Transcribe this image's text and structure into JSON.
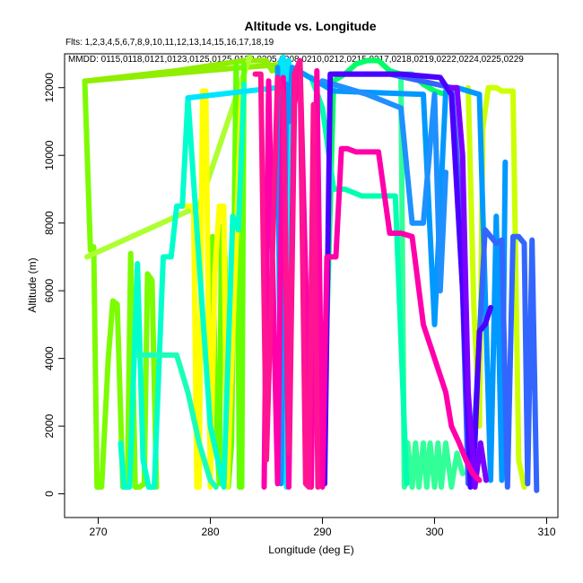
{
  "chart_data": {
    "type": "line",
    "title": "Altitude vs. Longitude",
    "subtitle": "Flts: 1,2,3,4,5,6,7,8,9,10,11,12,13,14,15,16,17,18,19",
    "note": "MMDD: 0115,0118,0121,0123,0125,0125,0130,0205,0208,0210,0212,0215,0217,0218,0219,0222,0224,0225,0229",
    "xlabel": "Longitude (deg E)",
    "ylabel": "Altitude (m)",
    "xlim": [
      267,
      311
    ],
    "ylim": [
      -700,
      13000
    ],
    "x_ticks": [
      270,
      280,
      290,
      300,
      310
    ],
    "y_ticks": [
      0,
      2000,
      4000,
      6000,
      8000,
      10000,
      12000
    ],
    "grid": false,
    "series": [
      {
        "color": "#7CFC00",
        "x": [
          268.8,
          269.3,
          269.6,
          269.9,
          270.3,
          270.9,
          271.3,
          271.7,
          272.2,
          272.6,
          272.9,
          273.3,
          273.7,
          274.1,
          274.4,
          274.8,
          275.2
        ],
        "y": [
          12200,
          7200,
          7300,
          200,
          200,
          4000,
          5700,
          5600,
          200,
          200,
          7100,
          200,
          200,
          300,
          6500,
          6300,
          200
        ]
      },
      {
        "color": "#90EE00",
        "x": [
          269.0,
          277.0,
          283.0,
          285.0,
          285.5,
          286.5,
          287.0,
          283.0,
          269.0
        ],
        "y": [
          12200,
          12500,
          12800,
          12800,
          12500,
          12600,
          12700,
          12600,
          12200
        ]
      },
      {
        "color": "#ADFF2F",
        "x": [
          269.0,
          279.0,
          283.5
        ],
        "y": [
          7000,
          8500,
          12900
        ]
      },
      {
        "color": "#66FF00",
        "x": [
          280.0,
          280.2,
          280.5,
          280.8,
          281.0,
          281.3,
          281.6,
          281.9,
          282.3,
          282.6,
          282.8,
          283.0
        ],
        "y": [
          1500,
          7600,
          2000,
          300,
          7900,
          7000,
          200,
          1500,
          12700,
          200,
          200,
          12700
        ]
      },
      {
        "color": "#FFFF00",
        "x": [
          277.5,
          278.0,
          278.5,
          278.8,
          279.0,
          279.3,
          279.6,
          280.0,
          280.4,
          280.8,
          281.2,
          281.5,
          282.8
        ],
        "y": [
          8500,
          8500,
          8500,
          200,
          200,
          11900,
          11900,
          200,
          6500,
          8500,
          8500,
          200,
          12000
        ]
      },
      {
        "color": "#00FFCC",
        "x": [
          272.0,
          272.3,
          272.8,
          273.5,
          274.0,
          274.5,
          275.0,
          275.8,
          276.5,
          277.0,
          277.5,
          278.0,
          280.0,
          281.2,
          282.0,
          282.5,
          283.0
        ],
        "y": [
          1500,
          200,
          200,
          6800,
          1000,
          200,
          200,
          7000,
          7000,
          8500,
          8500,
          11700,
          2000,
          200,
          8200,
          7800,
          12100
        ]
      },
      {
        "color": "#1AFFB8",
        "x": [
          273.5,
          274.5,
          276.0,
          277.0,
          278.0,
          279.0,
          280.0,
          280.5
        ],
        "y": [
          4100,
          4100,
          4100,
          4100,
          3000,
          1500,
          400,
          200
        ]
      },
      {
        "color": "#00E5FF",
        "x": [
          278.0,
          286.0,
          286.3,
          286.5,
          286.8,
          287.0
        ],
        "y": [
          11700,
          12000,
          12800,
          12900,
          200,
          12800
        ]
      },
      {
        "color": "#00FF66",
        "x": [
          290.0,
          291.0,
          292.0,
          293.0,
          294.0,
          295.0,
          296.0,
          297.0,
          298.0,
          299.0,
          300.0,
          301.0
        ],
        "y": [
          300,
          12200,
          12400,
          12700,
          12800,
          12800,
          12500,
          12400,
          12400,
          12100,
          11900,
          11800
        ]
      },
      {
        "color": "#33FF99",
        "x": [
          297.0,
          297.3,
          297.6,
          298.0,
          298.3,
          298.6,
          299.0,
          299.3,
          299.6,
          300.0,
          300.3,
          300.6,
          301.0,
          301.5,
          302.0,
          302.5
        ],
        "y": [
          12400,
          200,
          1500,
          200,
          1500,
          200,
          1500,
          200,
          1500,
          200,
          1500,
          200,
          1500,
          200,
          1200,
          600
        ]
      },
      {
        "color": "#00FFB0",
        "x": [
          289.0,
          290.0,
          291.0,
          292.0,
          293.5,
          295.0,
          296.5,
          297.5
        ],
        "y": [
          12300,
          11400,
          9000,
          9000,
          8800,
          8800,
          8800,
          300
        ]
      },
      {
        "color": "#CCFF00",
        "x": [
          303.0,
          303.5,
          304.0,
          304.3,
          304.8,
          305.5,
          306.0,
          307.0,
          307.5,
          308.0
        ],
        "y": [
          12000,
          5500,
          2000,
          10800,
          12000,
          12000,
          11900,
          11900,
          1000,
          200
        ]
      },
      {
        "color": "#0099FF",
        "x": [
          286.0,
          286.3,
          286.8,
          287.0,
          287.3,
          291.0,
          299.0,
          300.0,
          301.0,
          302.0,
          304.0,
          305.0,
          305.5,
          306.0,
          306.3
        ],
        "y": [
          12600,
          300,
          12100,
          11000,
          12600,
          11900,
          11800,
          5000,
          11900,
          12000,
          11800,
          400,
          8200,
          400,
          9800
        ]
      },
      {
        "color": "#1E90FF",
        "x": [
          290.0,
          294.0,
          297.0,
          298.0,
          299.0,
          300.0,
          300.5,
          301.0
        ],
        "y": [
          12200,
          11800,
          11400,
          8000,
          8000,
          11800,
          6000,
          9500
        ]
      },
      {
        "color": "#3366FF",
        "x": [
          291.0,
          296.0,
          301.5,
          302.0,
          302.5,
          303.0,
          303.5,
          304.5,
          305.5,
          306.0,
          306.5,
          307.0,
          307.5,
          308.0,
          308.3,
          308.7,
          309.1
        ],
        "y": [
          12400,
          12400,
          12000,
          10000,
          6000,
          300,
          1500,
          7800,
          7400,
          7500,
          200,
          7600,
          7600,
          7400,
          300,
          7500,
          100
        ]
      },
      {
        "color": "#4B00FF",
        "x": [
          290.2,
          290.7,
          292.0,
          297.0,
          300.5,
          301.5,
          302.5,
          303.2,
          303.6,
          304.0,
          304.5,
          305.0
        ],
        "y": [
          300,
          12400,
          12400,
          12400,
          12300,
          11800,
          6000,
          200,
          1500,
          4800,
          5000,
          5500
        ]
      },
      {
        "color": "#7A00FF",
        "x": [
          301.5,
          302.0,
          302.5,
          303.0,
          303.6,
          304.1,
          304.6
        ],
        "y": [
          12000,
          12000,
          10000,
          3000,
          200,
          1500,
          400
        ]
      },
      {
        "color": "#FF00AA",
        "x": [
          284.8,
          285.2,
          285.5,
          286.0,
          286.5,
          287.0,
          287.5,
          288.0,
          288.5,
          289.0,
          289.5,
          290.0,
          290.4,
          290.8,
          291.2,
          291.7,
          292.2,
          293.0,
          294.0,
          295.0,
          296.0,
          297.0,
          298.0,
          299.0,
          300.0,
          301.0,
          301.5,
          302.2,
          302.8,
          303.4,
          304.0
        ],
        "y": [
          200,
          12200,
          7500,
          300,
          12300,
          200,
          11500,
          12700,
          6400,
          200,
          12500,
          200,
          7000,
          7000,
          7000,
          10200,
          10200,
          10100,
          10100,
          10100,
          7700,
          7700,
          7600,
          5000,
          4000,
          3000,
          2000,
          1500,
          1000,
          600,
          400
        ]
      },
      {
        "color": "#FF1493",
        "x": [
          284.0,
          284.5,
          285.0,
          286.0,
          286.5,
          287.0,
          287.5,
          288.0,
          288.5,
          288.8,
          289.2,
          289.6
        ],
        "y": [
          12400,
          12400,
          1000,
          12300,
          11800,
          1200,
          12400,
          12800,
          300,
          200,
          11500,
          200
        ]
      }
    ]
  }
}
